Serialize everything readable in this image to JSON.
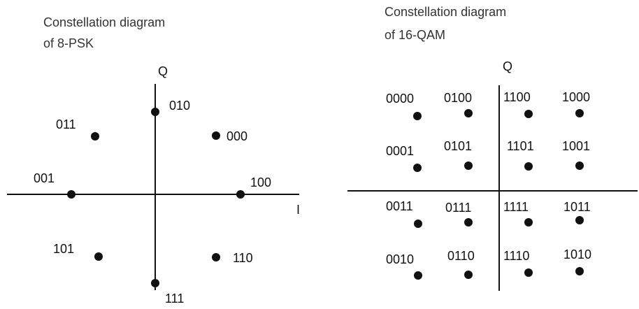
{
  "diagrams": [
    {
      "id": "psk",
      "title_lines": [
        "Constellation diagram",
        "of 8-PSK"
      ],
      "q_axis_label": "Q",
      "i_axis_label": "I",
      "points": [
        {
          "symbol": "010"
        },
        {
          "symbol": "011"
        },
        {
          "symbol": "000"
        },
        {
          "symbol": "001"
        },
        {
          "symbol": "100"
        },
        {
          "symbol": "101"
        },
        {
          "symbol": "110"
        },
        {
          "symbol": "111"
        }
      ]
    },
    {
      "id": "qam",
      "title_lines": [
        "Constellation diagram",
        "of 16-QAM"
      ],
      "q_axis_label": "Q",
      "points": [
        {
          "symbol": "0000"
        },
        {
          "symbol": "0100"
        },
        {
          "symbol": "1100"
        },
        {
          "symbol": "1000"
        },
        {
          "symbol": "0001"
        },
        {
          "symbol": "0101"
        },
        {
          "symbol": "1101"
        },
        {
          "symbol": "1001"
        },
        {
          "symbol": "0011"
        },
        {
          "symbol": "0111"
        },
        {
          "symbol": "1111"
        },
        {
          "symbol": "1011"
        },
        {
          "symbol": "0010"
        },
        {
          "symbol": "0110"
        },
        {
          "symbol": "1110"
        },
        {
          "symbol": "1010"
        }
      ]
    }
  ]
}
